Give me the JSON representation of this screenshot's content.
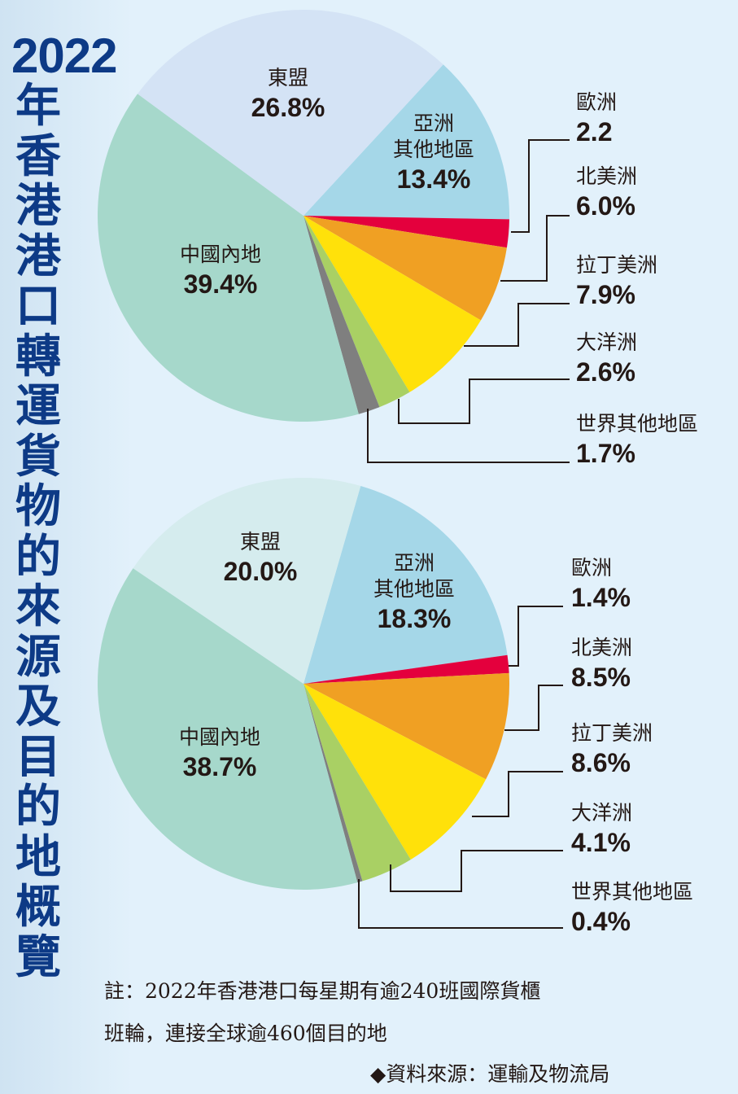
{
  "title": {
    "year": "2022",
    "text": "年香港港口轉運貨物的來源及目的地概覽"
  },
  "chart_data": [
    {
      "type": "pie",
      "slices": [
        {
          "label": "亞洲其他地區",
          "label_lines": [
            "亞洲",
            "其他地區"
          ],
          "value": 13.4,
          "display": "13.4%",
          "color": "#a5d7e8"
        },
        {
          "label": "東盟",
          "value": 26.8,
          "display": "26.8%",
          "color": "#d4e3f5"
        },
        {
          "label": "中國內地",
          "value": 39.4,
          "display": "39.4%",
          "color": "#a6d8cb"
        },
        {
          "label": "世界其他地區",
          "value": 1.7,
          "display": "1.7%",
          "color": "#7f7f7f"
        },
        {
          "label": "大洋洲",
          "value": 2.6,
          "display": "2.6%",
          "color": "#a9d064"
        },
        {
          "label": "拉丁美洲",
          "value": 7.9,
          "display": "7.9%",
          "color": "#ffe10a"
        },
        {
          "label": "北美洲",
          "value": 6.0,
          "display": "6.0%",
          "color": "#f0a023"
        },
        {
          "label": "歐洲",
          "value": 2.2,
          "display": "2.2",
          "color": "#e4003d"
        }
      ]
    },
    {
      "type": "pie",
      "slices": [
        {
          "label": "亞洲其他地區",
          "label_lines": [
            "亞洲",
            "其他地區"
          ],
          "value": 18.3,
          "display": "18.3%",
          "color": "#a5d7e8"
        },
        {
          "label": "東盟",
          "value": 20.0,
          "display": "20.0%",
          "color": "#d5ecee"
        },
        {
          "label": "中國內地",
          "value": 38.7,
          "display": "38.7%",
          "color": "#a6d8cb"
        },
        {
          "label": "世界其他地區",
          "value": 0.4,
          "display": "0.4%",
          "color": "#7f7f7f"
        },
        {
          "label": "大洋洲",
          "value": 4.1,
          "display": "4.1%",
          "color": "#a9d064"
        },
        {
          "label": "拉丁美洲",
          "value": 8.6,
          "display": "8.6%",
          "color": "#ffe10a"
        },
        {
          "label": "北美洲",
          "value": 8.5,
          "display": "8.5%",
          "color": "#f0a023"
        },
        {
          "label": "歐洲",
          "value": 1.4,
          "display": "1.4%",
          "color": "#e4003d"
        }
      ]
    }
  ],
  "note": {
    "line1": "註：2022年香港港口每星期有逾240班國際貨櫃",
    "line2": "班輪，連接全球逾460個目的地"
  },
  "source": "◆資料來源：運輸及物流局"
}
